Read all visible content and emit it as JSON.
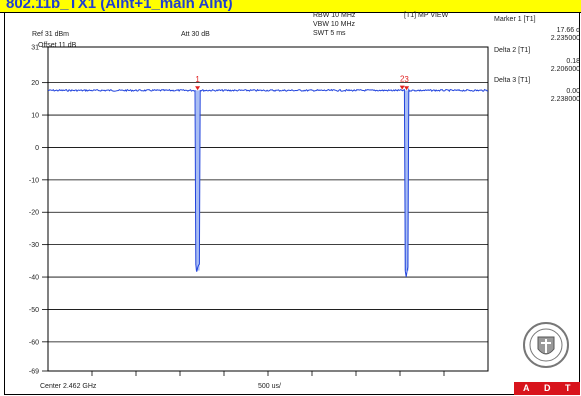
{
  "title": "802.11b_TX1 (Aint+1_main Aint)",
  "header": {
    "ref": "Ref 31 dBm",
    "att": "Att  30 dB",
    "offset": "Offset 11 dB",
    "rbw": "RBW 10 MHz",
    "vbw": "VBW 10 MHz",
    "swt": "SWT 5 ms",
    "view": "[T1] MP VIEW"
  },
  "markers_panel": [
    {
      "label": "Marker 1 [T1]",
      "value": "17.66 d",
      "freq": "2.235000"
    },
    {
      "label": "Delta 2 [T1]",
      "value": "0.18",
      "freq": "2.206000"
    },
    {
      "label": "Delta 3 [T1]",
      "value": "0.00",
      "freq": "2.238000"
    }
  ],
  "footer": {
    "center": "Center 2.462 GHz",
    "span": "500 us/"
  },
  "badge": {
    "letters": [
      "A",
      "D",
      "T"
    ]
  },
  "colors": {
    "trace": "#2244dd",
    "trace_fill": "#a9bdf3",
    "marker": "#e02020",
    "badge": "#d8141c",
    "title_bg": "#ffff00",
    "title_text": "#1f3fd0"
  },
  "chart_data": {
    "type": "line",
    "ylim": [
      -69,
      31
    ],
    "y_tick_labels": [
      "31",
      "20",
      "10",
      "0",
      "-10",
      "-20",
      "-30",
      "-40",
      "-50",
      "-60",
      "-69"
    ],
    "y_tick_values": [
      31,
      20,
      10,
      0,
      -10,
      -20,
      -30,
      -40,
      -50,
      -60,
      -69
    ],
    "x_divisions": 10,
    "x_unit": "500 us/div",
    "trace_level_dbm": 17.6,
    "dips": [
      {
        "center_div": 3.4,
        "min_dbm": -38
      },
      {
        "center_div": 8.15,
        "min_dbm": -38
      }
    ],
    "markers": [
      {
        "label": "1",
        "div": 3.4,
        "dbm": 17.66
      },
      {
        "label": "2",
        "div": 8.05,
        "dbm": 17.84
      },
      {
        "label": "3",
        "div": 8.15,
        "dbm": 17.66
      }
    ],
    "grid": true
  }
}
